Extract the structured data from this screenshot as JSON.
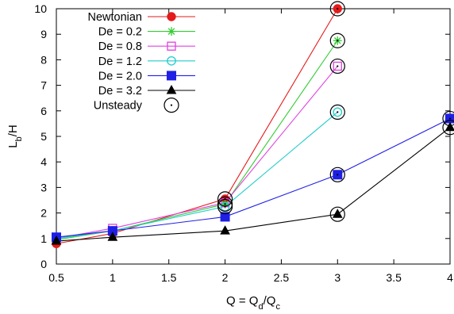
{
  "chart_data": {
    "type": "line",
    "xlabel": "Q = Q_d/Q_c",
    "ylabel": "L_b/H",
    "xlim": [
      0.5,
      4
    ],
    "ylim": [
      0,
      10
    ],
    "xticks": [
      "0.5",
      "1",
      "1.5",
      "2",
      "2.5",
      "3",
      "3.5",
      "4"
    ],
    "yticks": [
      "0",
      "1",
      "2",
      "3",
      "4",
      "5",
      "6",
      "7",
      "8",
      "9",
      "10"
    ],
    "grid": false,
    "legend_position": "top-left",
    "series": [
      {
        "name": "Newtonian",
        "color": "#e41a1c",
        "marker": "filled-circle",
        "x": [
          0.5,
          1,
          2,
          3
        ],
        "y": [
          0.8,
          1.2,
          2.55,
          10.0
        ]
      },
      {
        "name": "De = 0.2",
        "color": "#33cc33",
        "marker": "asterisk",
        "x": [
          0.5,
          1,
          2,
          3
        ],
        "y": [
          0.95,
          1.3,
          2.35,
          8.75
        ]
      },
      {
        "name": "De = 0.8",
        "color": "#e040e0",
        "marker": "open-square",
        "x": [
          0.5,
          1,
          2,
          3
        ],
        "y": [
          1.0,
          1.4,
          2.4,
          7.75
        ]
      },
      {
        "name": "De = 1.2",
        "color": "#22cccc",
        "marker": "open-circle",
        "x": [
          0.5,
          1,
          2,
          3
        ],
        "y": [
          1.0,
          1.3,
          2.25,
          5.95
        ]
      },
      {
        "name": "De = 2.0",
        "color": "#1f1fe6",
        "marker": "filled-square",
        "x": [
          0.5,
          1,
          2,
          3,
          4
        ],
        "y": [
          1.05,
          1.3,
          1.85,
          3.5,
          5.7
        ]
      },
      {
        "name": "De = 3.2",
        "color": "#000000",
        "marker": "filled-triangle",
        "x": [
          0.5,
          1,
          2,
          3,
          4
        ],
        "y": [
          0.9,
          1.05,
          1.3,
          1.95,
          5.35
        ]
      }
    ],
    "unsteady": {
      "name": "Unsteady",
      "points": [
        [
          2,
          2.55
        ],
        [
          2,
          2.35
        ],
        [
          2,
          2.25
        ],
        [
          3,
          10.0
        ],
        [
          3,
          8.75
        ],
        [
          3,
          7.75
        ],
        [
          3,
          5.95
        ],
        [
          3,
          3.5
        ],
        [
          3,
          1.95
        ],
        [
          4,
          5.7
        ],
        [
          4,
          5.35
        ]
      ]
    }
  }
}
